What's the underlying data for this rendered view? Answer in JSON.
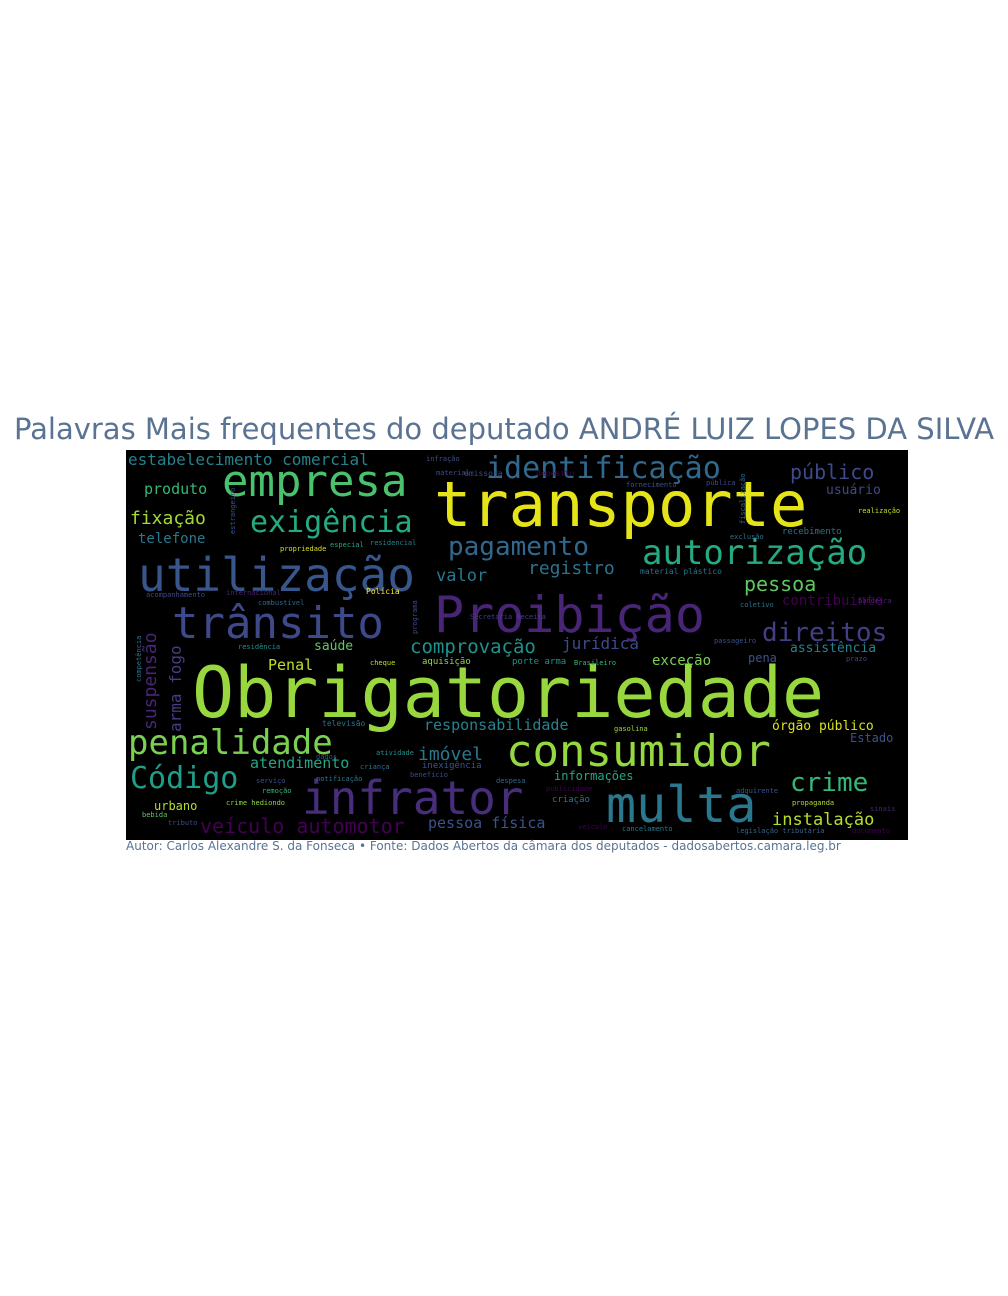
{
  "title": "Palavras Mais frequentes do deputado ANDRÉ LUIZ LOPES DA SILVA",
  "caption": "Autor: Carlos Alexandre S. da Fonseca • Fonte: Dados Abertos da câmara dos deputados - dadosabertos.camara.leg.br",
  "colors": {
    "title": "#5a7392",
    "background": "#000000"
  },
  "words": [
    {
      "text": "Obrigatoriedade",
      "color": "#98d83e",
      "vertical": false
    },
    {
      "text": "transporte",
      "color": "#e5e419",
      "vertical": false
    },
    {
      "text": "Proibição",
      "color": "#482576",
      "vertical": false
    },
    {
      "text": "utilização",
      "color": "#39568c",
      "vertical": false
    },
    {
      "text": "infrator",
      "color": "#472d7b",
      "vertical": false
    },
    {
      "text": "consumidor",
      "color": "#95d840",
      "vertical": false
    },
    {
      "text": "multa",
      "color": "#2a788e",
      "vertical": false
    },
    {
      "text": "trânsito",
      "color": "#3e4989",
      "vertical": false
    },
    {
      "text": "empresa",
      "color": "#4ac16d",
      "vertical": false
    },
    {
      "text": "autorização",
      "color": "#25ab82",
      "vertical": false
    },
    {
      "text": "identificação",
      "color": "#31688e",
      "vertical": false
    },
    {
      "text": "penalidade",
      "color": "#7ad151",
      "vertical": false
    },
    {
      "text": "exigência",
      "color": "#25ab82",
      "vertical": false
    },
    {
      "text": "Código",
      "color": "#1f9e89",
      "vertical": false
    },
    {
      "text": "pagamento",
      "color": "#31688e",
      "vertical": false
    },
    {
      "text": "direitos",
      "color": "#433e85",
      "vertical": false
    },
    {
      "text": "crime",
      "color": "#35b779",
      "vertical": false
    },
    {
      "text": "estabelecimento comercial",
      "color": "#26828e",
      "vertical": false
    },
    {
      "text": "público",
      "color": "#3e4a89",
      "vertical": false
    },
    {
      "text": "veículo automotor",
      "color": "#440154",
      "vertical": false
    },
    {
      "text": "comprovação",
      "color": "#21918c",
      "vertical": false
    },
    {
      "text": "instalação",
      "color": "#b5de2b",
      "vertical": false
    },
    {
      "text": "pessoa",
      "color": "#5ec962",
      "vertical": false
    },
    {
      "text": "valor",
      "color": "#2a788e",
      "vertical": false
    },
    {
      "text": "registro",
      "color": "#2c728e",
      "vertical": false
    },
    {
      "text": "fixação",
      "color": "#a2da37",
      "vertical": false
    },
    {
      "text": "imóvel",
      "color": "#2a788e",
      "vertical": false
    },
    {
      "text": "responsabilidade",
      "color": "#26828e",
      "vertical": false
    },
    {
      "text": "atendimento",
      "color": "#22a785",
      "vertical": false
    },
    {
      "text": "pessoa física",
      "color": "#3b528b",
      "vertical": false
    },
    {
      "text": "jurídica",
      "color": "#3e4a89",
      "vertical": false
    },
    {
      "text": "produto",
      "color": "#35b779",
      "vertical": false
    },
    {
      "text": "telefone",
      "color": "#2a788e",
      "vertical": false
    },
    {
      "text": "contribuinte",
      "color": "#440154",
      "vertical": false
    },
    {
      "text": "usuário",
      "color": "#3e4a89",
      "vertical": false
    },
    {
      "text": "exceção",
      "color": "#7ad151",
      "vertical": false
    },
    {
      "text": "Penal",
      "color": "#c2df23",
      "vertical": false
    },
    {
      "text": "saúde",
      "color": "#5ec962",
      "vertical": false
    },
    {
      "text": "assistência",
      "color": "#26828e",
      "vertical": false
    },
    {
      "text": "órgão público",
      "color": "#d8e219",
      "vertical": false
    },
    {
      "text": "Estado",
      "color": "#3b528b",
      "vertical": false
    },
    {
      "text": "informações",
      "color": "#22a785",
      "vertical": false
    },
    {
      "text": "urbano",
      "color": "#b5de2b",
      "vertical": false
    },
    {
      "text": "pena",
      "color": "#3b528b",
      "vertical": false
    },
    {
      "text": "suspensão",
      "color": "#482576",
      "vertical": true
    },
    {
      "text": "arma fogo",
      "color": "#433e85",
      "vertical": true
    },
    {
      "text": "aquisição",
      "color": "#8fd744",
      "vertical": false
    },
    {
      "text": "porte arma",
      "color": "#21918c",
      "vertical": false
    },
    {
      "text": "criação",
      "color": "#2a788e",
      "vertical": false
    },
    {
      "text": "inexigência",
      "color": "#3b528b",
      "vertical": false
    },
    {
      "text": "Polícia",
      "color": "#fde725",
      "vertical": false
    },
    {
      "text": "material plástico",
      "color": "#2c728e",
      "vertical": false
    },
    {
      "text": "emissora",
      "color": "#3e4a89",
      "vertical": false
    },
    {
      "text": "Brasileiro",
      "color": "#35b779",
      "vertical": false
    },
    {
      "text": "cheque",
      "color": "#c2df23",
      "vertical": false
    },
    {
      "text": "propriedade",
      "color": "#d8e219",
      "vertical": false
    },
    {
      "text": "televisão",
      "color": "#2c728e",
      "vertical": false
    },
    {
      "text": "crime hediondo",
      "color": "#8fd744",
      "vertical": false
    },
    {
      "text": "propaganda",
      "color": "#b5de2b",
      "vertical": false
    },
    {
      "text": "recebimento",
      "color": "#2c728e",
      "vertical": false
    },
    {
      "text": "realização",
      "color": "#c2df23",
      "vertical": false
    },
    {
      "text": "gasolina",
      "color": "#a2da37",
      "vertical": false
    },
    {
      "text": "adquirente",
      "color": "#3b528b",
      "vertical": false
    },
    {
      "text": "cancelamento",
      "color": "#2a788e",
      "vertical": false
    },
    {
      "text": "legislação tributária",
      "color": "#31688e",
      "vertical": false
    },
    {
      "text": "documento",
      "color": "#440154",
      "vertical": false
    },
    {
      "text": "bebida",
      "color": "#5ec962",
      "vertical": false
    },
    {
      "text": "tributo",
      "color": "#3e4a89",
      "vertical": false
    },
    {
      "text": "veículo",
      "color": "#440154",
      "vertical": false
    },
    {
      "text": "bandeira",
      "color": "#482576",
      "vertical": false
    },
    {
      "text": "prazo",
      "color": "#3e4a89",
      "vertical": false
    },
    {
      "text": "despesa",
      "color": "#31688e",
      "vertical": false
    },
    {
      "text": "notificação",
      "color": "#2a788e",
      "vertical": false
    },
    {
      "text": "residencial",
      "color": "#26828e",
      "vertical": false
    },
    {
      "text": "especial",
      "color": "#22a785",
      "vertical": false
    },
    {
      "text": "acompanhamento",
      "color": "#3e4a89",
      "vertical": false
    },
    {
      "text": "combustível",
      "color": "#31688e",
      "vertical": false
    },
    {
      "text": "internacional",
      "color": "#482576",
      "vertical": false
    },
    {
      "text": "coletivo",
      "color": "#2c728e",
      "vertical": false
    },
    {
      "text": "exclusão",
      "color": "#2c728e",
      "vertical": false
    },
    {
      "text": "pública",
      "color": "#3e4a89",
      "vertical": false
    },
    {
      "text": "fornecimento",
      "color": "#3b528b",
      "vertical": false
    },
    {
      "text": "infração",
      "color": "#3b528b",
      "vertical": false
    },
    {
      "text": "material",
      "color": "#3e4a89",
      "vertical": false
    },
    {
      "text": "depósito",
      "color": "#440154",
      "vertical": false
    },
    {
      "text": "atividade",
      "color": "#21918c",
      "vertical": false
    },
    {
      "text": "criança",
      "color": "#2c728e",
      "vertical": false
    },
    {
      "text": "dados",
      "color": "#3b528b",
      "vertical": false
    },
    {
      "text": "remoção",
      "color": "#35b779",
      "vertical": false
    },
    {
      "text": "serviço",
      "color": "#3b528b",
      "vertical": false
    },
    {
      "text": "benefício",
      "color": "#3e4a89",
      "vertical": false
    },
    {
      "text": "residência",
      "color": "#21918c",
      "vertical": false
    },
    {
      "text": "publicidade",
      "color": "#440154",
      "vertical": false
    },
    {
      "text": "passageiro",
      "color": "#3b528b",
      "vertical": false
    },
    {
      "text": "Secretaria Receita",
      "color": "#433e85",
      "vertical": false
    },
    {
      "text": "competência",
      "color": "#2c728e",
      "vertical": true
    },
    {
      "text": "estrangeiro",
      "color": "#3b528b",
      "vertical": true
    },
    {
      "text": "fiscalização",
      "color": "#31688e",
      "vertical": true
    },
    {
      "text": "programa",
      "color": "#3e4a89",
      "vertical": true
    },
    {
      "text": "sinais",
      "color": "#482576",
      "vertical": false
    }
  ]
}
